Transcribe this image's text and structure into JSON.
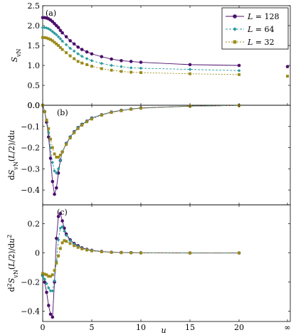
{
  "colors": {
    "L128": "#4b0f6b",
    "L64": "#2a9a9c",
    "L32": "#9a8a1c"
  },
  "legend": [
    {
      "key": "L128",
      "italic": "L",
      "rest": " = 128",
      "marker": "circle"
    },
    {
      "key": "L64",
      "italic": "L",
      "rest": " = 64",
      "marker": "diamond"
    },
    {
      "key": "L32",
      "italic": "L",
      "rest": " = 32",
      "marker": "square"
    }
  ],
  "xaxis": {
    "label": "u",
    "ticks": [
      "0",
      "5",
      "10",
      "15",
      "20"
    ],
    "inf_label": "∞"
  },
  "chart_data": [
    {
      "type": "line",
      "panel": "(a)",
      "ylabel": "S_vN",
      "ylim": [
        0.0,
        2.5
      ],
      "yticks": [
        0.0,
        0.5,
        1.0,
        1.5,
        2.0,
        2.5
      ],
      "ytick_labels": [
        "0.0",
        "0.5",
        "1.0",
        "1.5",
        "2.0",
        "2.5"
      ],
      "legend_position": "top-right",
      "series": [
        {
          "name": "L = 128",
          "key": "L128",
          "x": [
            0.0,
            0.2,
            0.4,
            0.6,
            0.8,
            1.0,
            1.2,
            1.4,
            1.6,
            1.8,
            2.0,
            2.4,
            2.8,
            3.2,
            3.6,
            4.0,
            4.5,
            5.0,
            6.0,
            7.0,
            8.0,
            9.0,
            10.0,
            15.0,
            20.0
          ],
          "y": [
            2.2,
            2.2,
            2.19,
            2.17,
            2.14,
            2.1,
            2.05,
            2.0,
            1.95,
            1.88,
            1.82,
            1.72,
            1.62,
            1.54,
            1.46,
            1.4,
            1.34,
            1.29,
            1.22,
            1.16,
            1.12,
            1.1,
            1.08,
            1.02,
            1.0
          ],
          "inf": 0.97
        },
        {
          "name": "L = 64",
          "key": "L64",
          "x": [
            0.0,
            0.2,
            0.4,
            0.6,
            0.8,
            1.0,
            1.2,
            1.4,
            1.6,
            1.8,
            2.0,
            2.4,
            2.8,
            3.2,
            3.6,
            4.0,
            4.5,
            5.0,
            6.0,
            7.0,
            8.0,
            9.0,
            10.0,
            15.0,
            20.0
          ],
          "y": [
            1.95,
            1.95,
            1.94,
            1.92,
            1.89,
            1.85,
            1.81,
            1.77,
            1.72,
            1.67,
            1.61,
            1.52,
            1.43,
            1.36,
            1.29,
            1.23,
            1.17,
            1.12,
            1.05,
            1.0,
            0.97,
            0.94,
            0.93,
            0.9,
            0.87
          ],
          "inf": null
        },
        {
          "name": "L = 32",
          "key": "L32",
          "x": [
            0.0,
            0.2,
            0.4,
            0.6,
            0.8,
            1.0,
            1.2,
            1.4,
            1.6,
            1.8,
            2.0,
            2.4,
            2.8,
            3.2,
            3.6,
            4.0,
            4.5,
            5.0,
            6.0,
            7.0,
            8.0,
            9.0,
            10.0,
            15.0,
            20.0
          ],
          "y": [
            1.7,
            1.7,
            1.69,
            1.67,
            1.65,
            1.62,
            1.58,
            1.54,
            1.5,
            1.45,
            1.4,
            1.32,
            1.24,
            1.17,
            1.1,
            1.06,
            1.02,
            0.98,
            0.92,
            0.88,
            0.85,
            0.83,
            0.82,
            0.79,
            0.77
          ],
          "inf": 0.73
        }
      ]
    },
    {
      "type": "line",
      "panel": "(b)",
      "ylabel": "dS_vN(L/2)/du",
      "ylim": [
        -0.47,
        0.0
      ],
      "yticks": [
        0.0,
        -0.1,
        -0.2,
        -0.3,
        -0.4
      ],
      "ytick_labels": [
        "0.0",
        "−0.1",
        "−0.2",
        "−0.3",
        "−0.4"
      ],
      "series": [
        {
          "name": "L = 128",
          "key": "L128",
          "x": [
            0.0,
            0.2,
            0.4,
            0.6,
            0.8,
            1.0,
            1.2,
            1.4,
            1.6,
            1.8,
            2.0,
            2.4,
            2.8,
            3.2,
            3.6,
            4.0,
            4.5,
            5.0,
            6.0,
            7.0,
            8.0,
            9.0,
            10.0,
            15.0,
            20.0
          ],
          "y": [
            0.0,
            -0.03,
            -0.08,
            -0.15,
            -0.25,
            -0.36,
            -0.42,
            -0.39,
            -0.32,
            -0.26,
            -0.22,
            -0.18,
            -0.15,
            -0.125,
            -0.105,
            -0.09,
            -0.075,
            -0.06,
            -0.045,
            -0.032,
            -0.024,
            -0.018,
            -0.013,
            -0.004,
            -0.001
          ],
          "inf": null
        },
        {
          "name": "L = 64",
          "key": "L64",
          "x": [
            0.0,
            0.2,
            0.4,
            0.6,
            0.8,
            1.0,
            1.2,
            1.4,
            1.6,
            1.8,
            2.0,
            2.4,
            2.8,
            3.2,
            3.6,
            4.0,
            4.5,
            5.0,
            6.0,
            7.0,
            8.0,
            9.0,
            10.0,
            15.0,
            20.0
          ],
          "y": [
            0.0,
            -0.03,
            -0.07,
            -0.13,
            -0.2,
            -0.27,
            -0.31,
            -0.32,
            -0.3,
            -0.26,
            -0.22,
            -0.18,
            -0.15,
            -0.125,
            -0.105,
            -0.09,
            -0.075,
            -0.06,
            -0.045,
            -0.032,
            -0.024,
            -0.018,
            -0.013,
            -0.004,
            -0.001
          ],
          "inf": null
        },
        {
          "name": "L = 32",
          "key": "L32",
          "x": [
            0.0,
            0.2,
            0.4,
            0.6,
            0.8,
            1.0,
            1.2,
            1.4,
            1.6,
            1.8,
            2.0,
            2.4,
            2.8,
            3.2,
            3.6,
            4.0,
            4.5,
            5.0,
            6.0,
            7.0,
            8.0,
            9.0,
            10.0,
            15.0,
            20.0
          ],
          "y": [
            0.0,
            -0.03,
            -0.07,
            -0.11,
            -0.16,
            -0.2,
            -0.23,
            -0.245,
            -0.245,
            -0.235,
            -0.22,
            -0.185,
            -0.155,
            -0.13,
            -0.11,
            -0.094,
            -0.078,
            -0.065,
            -0.047,
            -0.034,
            -0.026,
            -0.019,
            -0.014,
            -0.004,
            -0.001
          ],
          "inf": null
        }
      ]
    },
    {
      "type": "line",
      "panel": "(c)",
      "ylabel": "d²S_vN(L/2)/du²",
      "ylim": [
        -0.47,
        0.33
      ],
      "yticks": [
        0.2,
        0.0,
        -0.2,
        -0.4
      ],
      "ytick_labels": [
        "0.2",
        "0",
        "−0.2",
        "−0.4"
      ],
      "series": [
        {
          "name": "L = 128",
          "key": "L128",
          "x": [
            0.0,
            0.2,
            0.4,
            0.6,
            0.8,
            1.0,
            1.2,
            1.4,
            1.6,
            1.8,
            2.0,
            2.2,
            2.4,
            2.8,
            3.2,
            3.6,
            4.0,
            4.5,
            5.0,
            6.0,
            7.0,
            8.0,
            9.0,
            10.0,
            15.0,
            20.0
          ],
          "y": [
            -0.15,
            -0.2,
            -0.27,
            -0.36,
            -0.42,
            -0.44,
            -0.2,
            0.1,
            0.25,
            0.27,
            0.22,
            0.17,
            0.13,
            0.09,
            0.065,
            0.05,
            0.035,
            0.025,
            0.018,
            0.01,
            0.005,
            0.003,
            0.002,
            0.001,
            0.0,
            0.0
          ],
          "inf": null
        },
        {
          "name": "L = 64",
          "key": "L64",
          "x": [
            0.0,
            0.2,
            0.4,
            0.6,
            0.8,
            1.0,
            1.2,
            1.4,
            1.6,
            1.8,
            2.0,
            2.2,
            2.4,
            2.8,
            3.2,
            3.6,
            4.0,
            4.5,
            5.0,
            6.0,
            7.0,
            8.0,
            9.0,
            10.0,
            15.0,
            20.0
          ],
          "y": [
            -0.16,
            -0.18,
            -0.21,
            -0.24,
            -0.26,
            -0.26,
            -0.19,
            -0.06,
            0.09,
            0.17,
            0.18,
            0.15,
            0.12,
            0.085,
            0.06,
            0.045,
            0.033,
            0.024,
            0.017,
            0.009,
            0.005,
            0.003,
            0.002,
            0.001,
            0.0,
            0.0
          ],
          "inf": null
        },
        {
          "name": "L = 32",
          "key": "L32",
          "x": [
            0.0,
            0.2,
            0.4,
            0.6,
            0.8,
            1.0,
            1.2,
            1.4,
            1.6,
            1.8,
            2.0,
            2.2,
            2.4,
            2.8,
            3.2,
            3.6,
            4.0,
            4.5,
            5.0,
            6.0,
            7.0,
            8.0,
            9.0,
            10.0,
            15.0,
            20.0
          ],
          "y": [
            -0.14,
            -0.145,
            -0.15,
            -0.16,
            -0.16,
            -0.15,
            -0.12,
            -0.07,
            -0.02,
            0.03,
            0.07,
            0.085,
            0.08,
            0.065,
            0.05,
            0.038,
            0.028,
            0.02,
            0.014,
            0.008,
            0.004,
            0.002,
            0.001,
            0.0,
            0.0,
            0.0
          ],
          "inf": null
        }
      ]
    }
  ]
}
